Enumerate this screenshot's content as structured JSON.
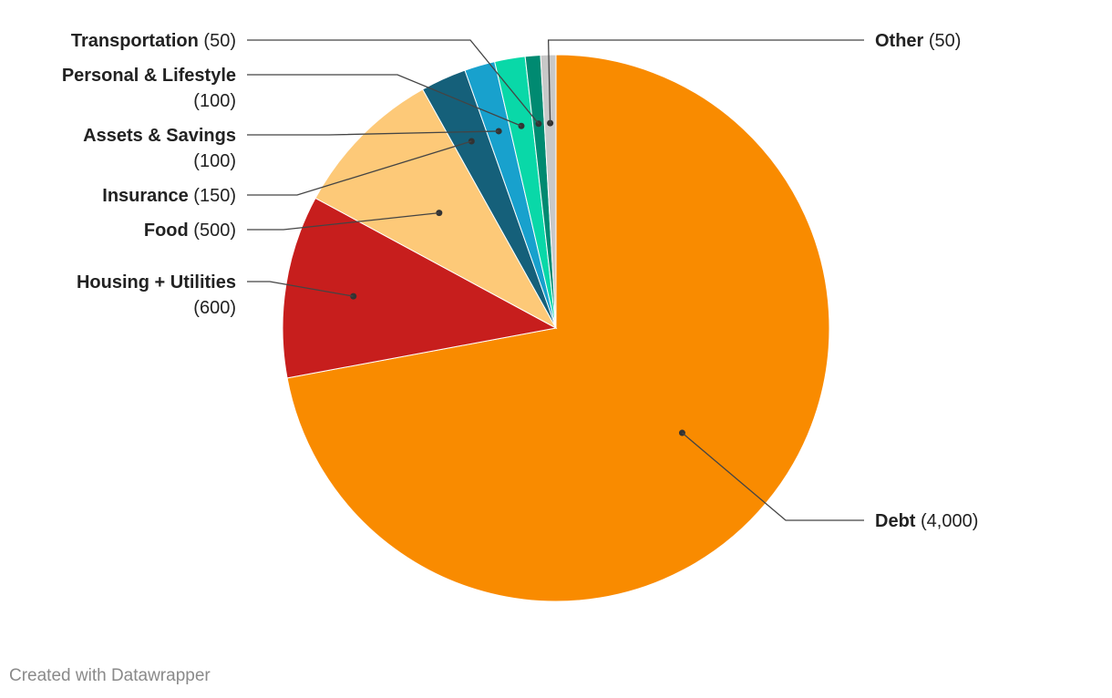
{
  "chart_data": {
    "type": "pie",
    "slices": [
      {
        "label": "Debt",
        "value": 4000,
        "value_label": "(4,000)",
        "color": "#f98b00"
      },
      {
        "label": "Housing + Utilities",
        "value": 600,
        "value_label": "(600)",
        "color": "#c71e1d"
      },
      {
        "label": "Food",
        "value": 500,
        "value_label": "(500)",
        "color": "#fdc978"
      },
      {
        "label": "Insurance",
        "value": 150,
        "value_label": "(150)",
        "color": "#15607a"
      },
      {
        "label": "Assets & Savings",
        "value": 100,
        "value_label": "(100)",
        "color": "#18a1cd"
      },
      {
        "label": "Personal & Lifestyle",
        "value": 100,
        "value_label": "(100)",
        "color": "#09d8a8"
      },
      {
        "label": "Transportation",
        "value": 50,
        "value_label": "(50)",
        "color": "#008a71"
      },
      {
        "label": "Other",
        "value": 50,
        "value_label": "(50)",
        "color": "#c8c8c8"
      }
    ],
    "start_angle": "12 o'clock",
    "direction": "clockwise"
  },
  "footer": {
    "credit": "Created with Datawrapper"
  }
}
